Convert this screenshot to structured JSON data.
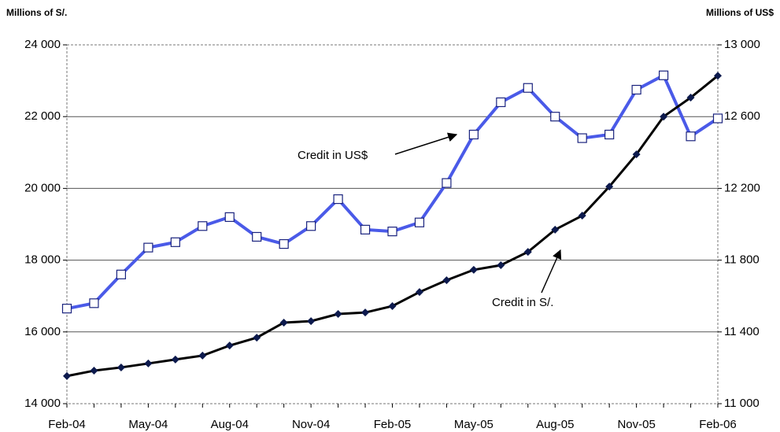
{
  "chart_data": {
    "type": "line",
    "y_label": "Millions of S/.",
    "y2_label": "Millions of US$",
    "categories": [
      "Feb-04",
      null,
      null,
      "May-04",
      null,
      null,
      "Aug-04",
      null,
      null,
      "Nov-04",
      null,
      null,
      "Feb-05",
      null,
      null,
      "May-05",
      null,
      null,
      "Aug-05",
      null,
      null,
      "Nov-05",
      null,
      null,
      "Feb-06"
    ],
    "series": [
      {
        "name": "Credit in S/.",
        "color": "#000000",
        "marker_color": "#0d1a4d",
        "axis": "y",
        "values": [
          14770,
          14920,
          15010,
          15120,
          15230,
          15340,
          15620,
          15840,
          16260,
          16300,
          16500,
          16540,
          16720,
          17110,
          17440,
          17730,
          17860,
          18230,
          18850,
          19240,
          20050,
          20950,
          22000,
          22530,
          23140
        ]
      },
      {
        "name": "Credit in US$",
        "color": "#4a5ae8",
        "marker_color": "#1a237e",
        "axis": "y2",
        "values": [
          11530,
          11560,
          11720,
          11870,
          11900,
          11990,
          12040,
          11930,
          11890,
          11990,
          12140,
          11970,
          11960,
          12010,
          12230,
          12500,
          12680,
          12760,
          12600,
          12480,
          12500,
          12750,
          12830,
          12490,
          12590
        ]
      }
    ],
    "annotations": [
      "Credit in US$",
      "Credit in S/."
    ],
    "ylim": [
      14000,
      24000
    ],
    "yticks": [
      {
        "value": 14000,
        "label": "14 000"
      },
      {
        "value": 16000,
        "label": "16 000"
      },
      {
        "value": 18000,
        "label": "18 000"
      },
      {
        "value": 20000,
        "label": "20 000"
      },
      {
        "value": 22000,
        "label": "22 000"
      },
      {
        "value": 24000,
        "label": "24 000"
      }
    ],
    "y2lim": [
      11000,
      13000
    ],
    "y2ticks": [
      {
        "value": 11000,
        "label": "11 000"
      },
      {
        "value": 11400,
        "label": "11 400"
      },
      {
        "value": 11800,
        "label": "11 800"
      },
      {
        "value": 12200,
        "label": "12 200"
      },
      {
        "value": 12600,
        "label": "12 600"
      },
      {
        "value": 13000,
        "label": "13 000"
      }
    ],
    "grid": true
  }
}
